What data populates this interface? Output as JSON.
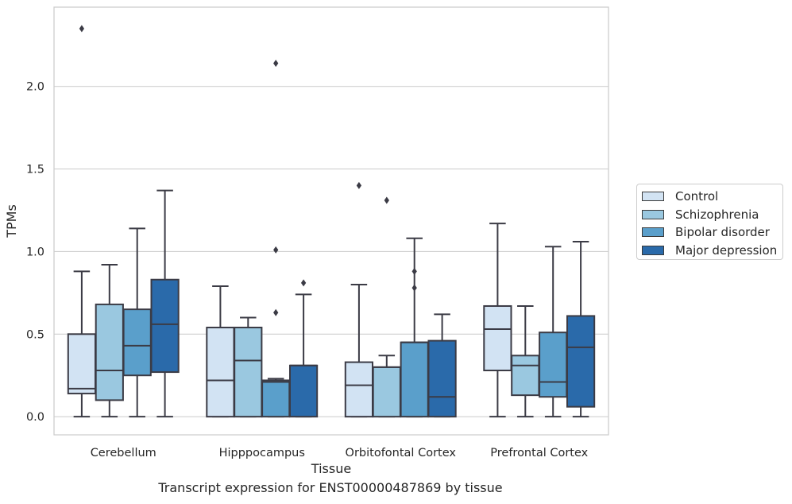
{
  "chart_data": {
    "type": "box",
    "title": "",
    "xlabel": "Tissue",
    "ylabel": "TPMs",
    "caption": "Transcript expression for ENST00000487869 by tissue",
    "ylim": [
      -0.11,
      2.48
    ],
    "yticks": [
      "0.0",
      "0.5",
      "1.0",
      "1.5",
      "2.0"
    ],
    "grid": "horizontal",
    "legend_position": "right",
    "categories": [
      "Cerebellum",
      "Hipppocampus",
      "Orbitofontal Cortex",
      "Prefrontal Cortex"
    ],
    "series": [
      {
        "name": "Control",
        "color": "#d2e3f3",
        "boxes": [
          {
            "whisker_low": 0.0,
            "q1": 0.14,
            "median": 0.17,
            "q3": 0.5,
            "whisker_high": 0.88,
            "outliers": [
              2.35
            ]
          },
          {
            "whisker_low": 0.0,
            "q1": 0.0,
            "median": 0.22,
            "q3": 0.54,
            "whisker_high": 0.79,
            "outliers": []
          },
          {
            "whisker_low": 0.0,
            "q1": 0.0,
            "median": 0.19,
            "q3": 0.33,
            "whisker_high": 0.8,
            "outliers": [
              1.4
            ]
          },
          {
            "whisker_low": 0.0,
            "q1": 0.28,
            "median": 0.53,
            "q3": 0.67,
            "whisker_high": 1.17,
            "outliers": []
          }
        ]
      },
      {
        "name": "Schizophrenia",
        "color": "#9ac8e0",
        "boxes": [
          {
            "whisker_low": 0.0,
            "q1": 0.1,
            "median": 0.28,
            "q3": 0.68,
            "whisker_high": 0.92,
            "outliers": []
          },
          {
            "whisker_low": 0.0,
            "q1": 0.0,
            "median": 0.34,
            "q3": 0.54,
            "whisker_high": 0.6,
            "outliers": []
          },
          {
            "whisker_low": 0.0,
            "q1": 0.0,
            "median": 0.3,
            "q3": 0.3,
            "whisker_high": 0.37,
            "outliers": [
              1.31
            ]
          },
          {
            "whisker_low": 0.0,
            "q1": 0.13,
            "median": 0.31,
            "q3": 0.37,
            "whisker_high": 0.67,
            "outliers": []
          }
        ]
      },
      {
        "name": "Bipolar disorder",
        "color": "#5a9fcb",
        "boxes": [
          {
            "whisker_low": 0.0,
            "q1": 0.25,
            "median": 0.43,
            "q3": 0.65,
            "whisker_high": 1.14,
            "outliers": []
          },
          {
            "whisker_low": 0.0,
            "q1": 0.0,
            "median": 0.21,
            "q3": 0.22,
            "whisker_high": 0.23,
            "outliers": [
              2.14,
              1.01,
              0.63
            ]
          },
          {
            "whisker_low": 0.0,
            "q1": 0.0,
            "median": 0.45,
            "q3": 0.45,
            "whisker_high": 1.08,
            "outliers": [
              0.88,
              0.78
            ]
          },
          {
            "whisker_low": 0.0,
            "q1": 0.12,
            "median": 0.21,
            "q3": 0.51,
            "whisker_high": 1.03,
            "outliers": []
          }
        ]
      },
      {
        "name": "Major depression",
        "color": "#2a6aaa",
        "boxes": [
          {
            "whisker_low": 0.0,
            "q1": 0.27,
            "median": 0.56,
            "q3": 0.83,
            "whisker_high": 1.37,
            "outliers": []
          },
          {
            "whisker_low": 0.0,
            "q1": 0.0,
            "median": 0.31,
            "q3": 0.31,
            "whisker_high": 0.74,
            "outliers": [
              0.81
            ]
          },
          {
            "whisker_low": 0.0,
            "q1": 0.0,
            "median": 0.12,
            "q3": 0.46,
            "whisker_high": 0.62,
            "outliers": []
          },
          {
            "whisker_low": 0.0,
            "q1": 0.06,
            "median": 0.42,
            "q3": 0.61,
            "whisker_high": 1.06,
            "outliers": []
          }
        ]
      }
    ]
  }
}
